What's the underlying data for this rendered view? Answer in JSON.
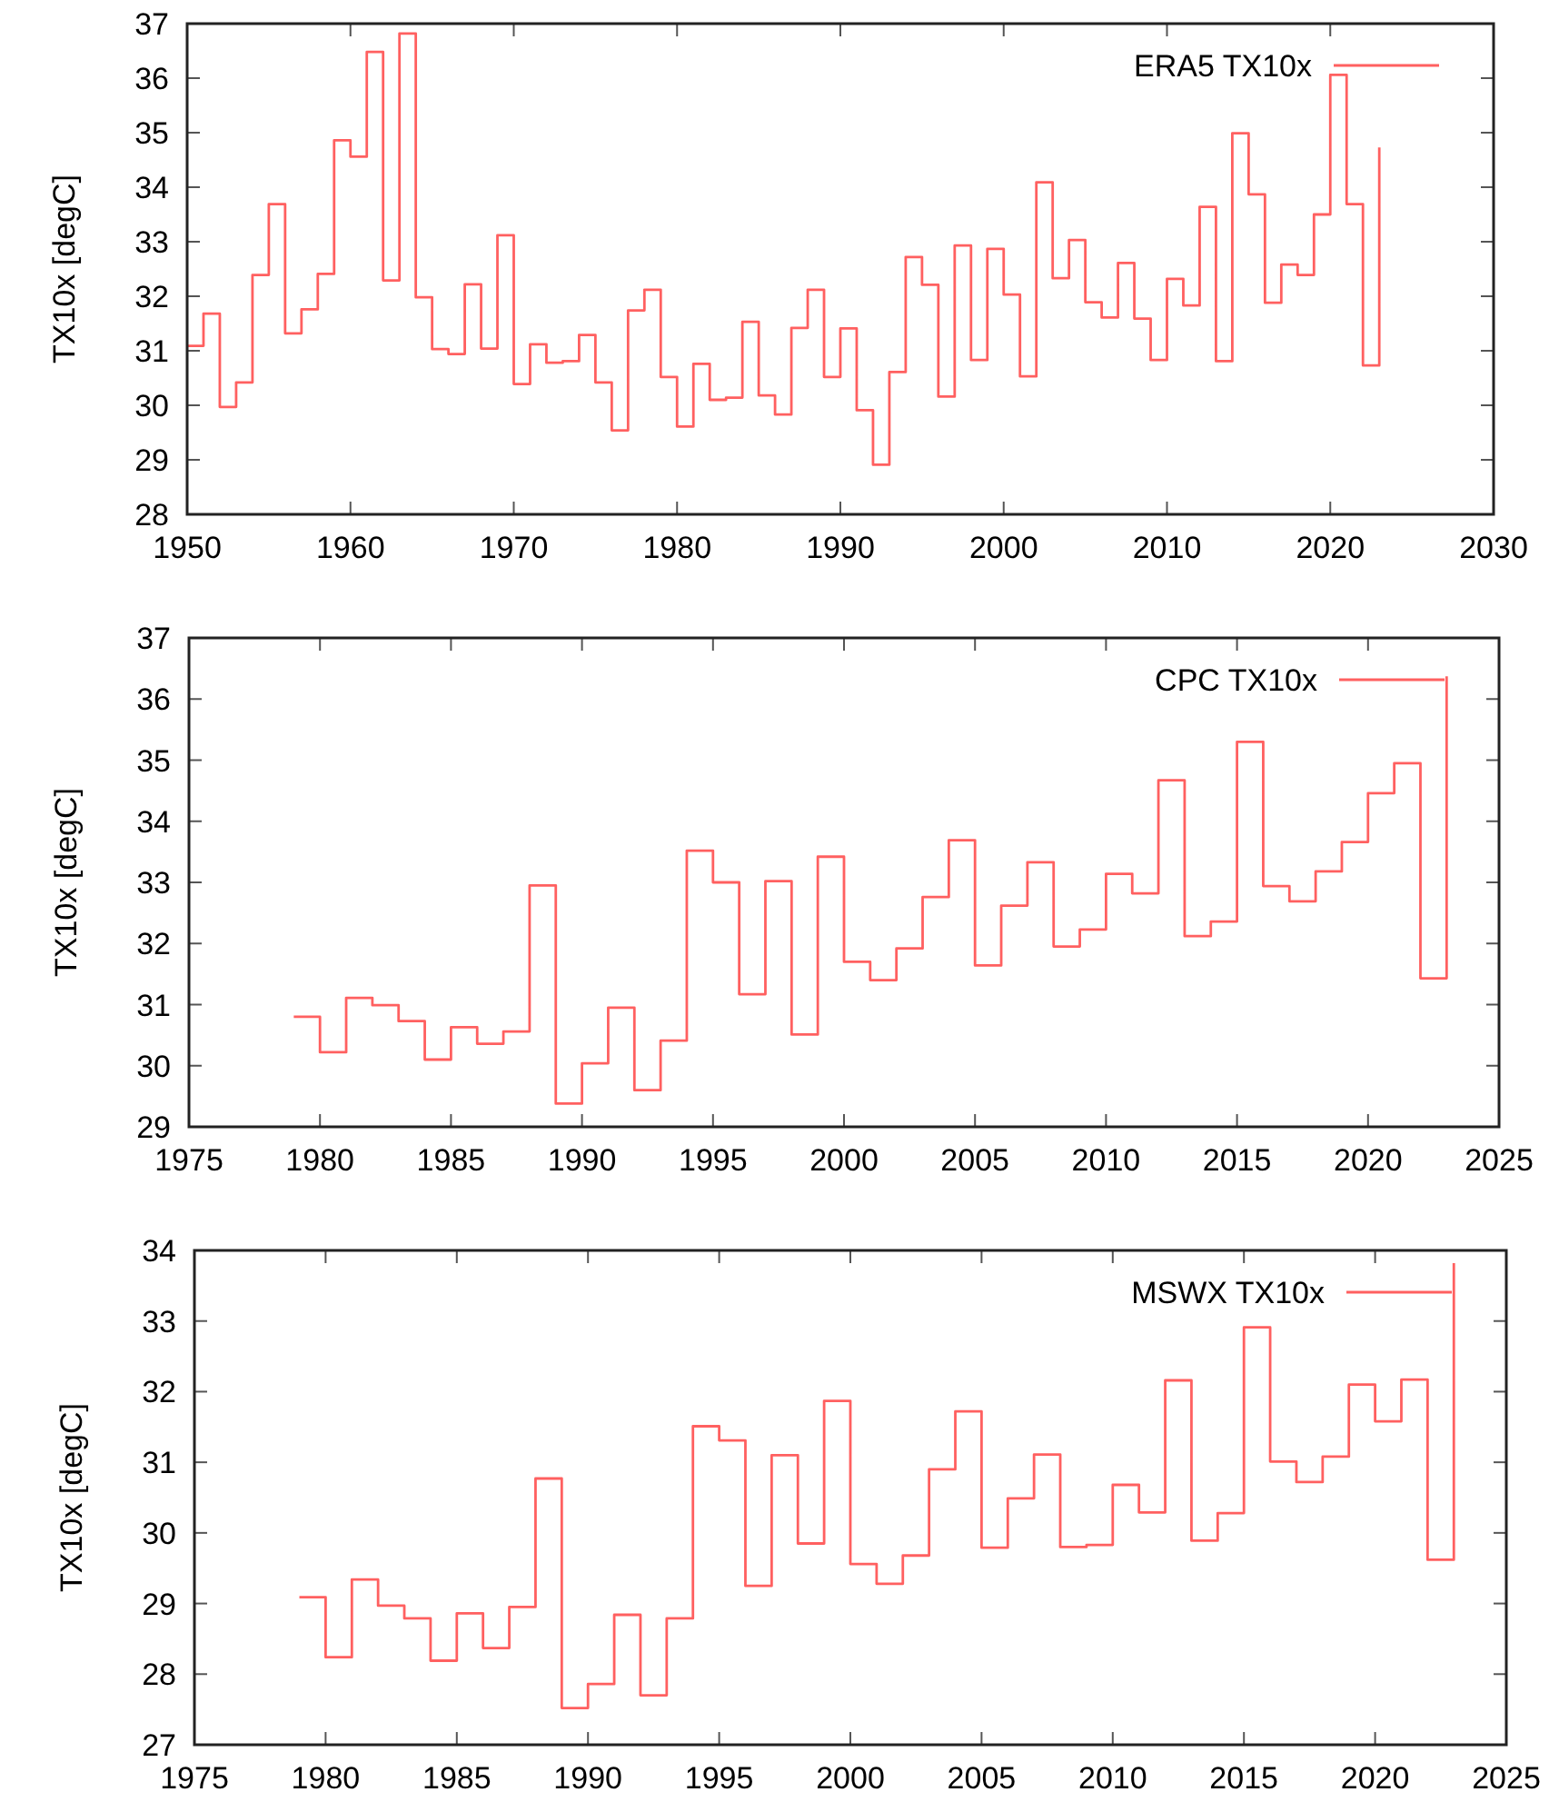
{
  "chart_data": [
    {
      "type": "step",
      "ylabel": "TX10x [degC]",
      "legend": "top right",
      "xlim": [
        1950,
        2030
      ],
      "xticks": [
        1950,
        1960,
        1970,
        1980,
        1990,
        2000,
        2010,
        2020,
        2030
      ],
      "ylim": [
        28,
        37
      ],
      "yticks": [
        28,
        29,
        30,
        31,
        32,
        33,
        34,
        35,
        36,
        37
      ],
      "x": [
        1950,
        1951,
        1952,
        1953,
        1954,
        1955,
        1956,
        1957,
        1958,
        1959,
        1960,
        1961,
        1962,
        1963,
        1964,
        1965,
        1966,
        1967,
        1968,
        1969,
        1970,
        1971,
        1972,
        1973,
        1974,
        1975,
        1976,
        1977,
        1978,
        1979,
        1980,
        1981,
        1982,
        1983,
        1984,
        1985,
        1986,
        1987,
        1988,
        1989,
        1990,
        1991,
        1992,
        1993,
        1994,
        1995,
        1996,
        1997,
        1998,
        1999,
        2000,
        2001,
        2002,
        2003,
        2004,
        2005,
        2006,
        2007,
        2008,
        2009,
        2010,
        2011,
        2012,
        2013,
        2014,
        2015,
        2016,
        2017,
        2018,
        2019,
        2020,
        2021,
        2022,
        2023
      ],
      "series": [
        {
          "name": "ERA5 TX10x",
          "color": "#ff6060",
          "values": [
            31.09,
            31.68,
            29.97,
            30.42,
            32.39,
            33.69,
            31.32,
            31.76,
            32.41,
            34.86,
            34.56,
            36.48,
            32.29,
            36.82,
            31.98,
            31.03,
            30.94,
            32.22,
            31.04,
            33.12,
            30.39,
            31.12,
            30.78,
            30.81,
            31.29,
            30.42,
            29.54,
            31.74,
            32.12,
            30.52,
            29.61,
            30.76,
            30.1,
            30.14,
            31.53,
            30.18,
            29.83,
            31.42,
            32.12,
            30.52,
            31.41,
            29.91,
            28.91,
            30.61,
            32.72,
            32.21,
            30.16,
            32.93,
            30.83,
            32.87,
            32.03,
            30.53,
            34.09,
            32.33,
            33.03,
            31.89,
            31.61,
            32.61,
            31.59,
            30.83,
            32.32,
            31.83,
            33.64,
            30.81,
            34.99,
            33.87,
            31.88,
            32.58,
            32.39,
            33.5,
            36.06,
            33.69,
            30.73,
            34.73
          ]
        }
      ]
    },
    {
      "type": "step",
      "ylabel": "TX10x [degC]",
      "legend": "top right",
      "xlim": [
        1975,
        2025
      ],
      "xticks": [
        1975,
        1980,
        1985,
        1990,
        1995,
        2000,
        2005,
        2010,
        2015,
        2020,
        2025
      ],
      "ylim": [
        29,
        37
      ],
      "yticks": [
        29,
        30,
        31,
        32,
        33,
        34,
        35,
        36,
        37
      ],
      "x": [
        1979,
        1980,
        1981,
        1982,
        1983,
        1984,
        1985,
        1986,
        1987,
        1988,
        1989,
        1990,
        1991,
        1992,
        1993,
        1994,
        1995,
        1996,
        1997,
        1998,
        1999,
        2000,
        2001,
        2002,
        2003,
        2004,
        2005,
        2006,
        2007,
        2008,
        2009,
        2010,
        2011,
        2012,
        2013,
        2014,
        2015,
        2016,
        2017,
        2018,
        2019,
        2020,
        2021,
        2022,
        2023
      ],
      "series": [
        {
          "name": "CPC TX10x",
          "color": "#ff6060",
          "values": [
            30.8,
            30.22,
            31.11,
            30.99,
            30.73,
            30.1,
            30.63,
            30.36,
            30.56,
            32.95,
            29.38,
            30.04,
            30.95,
            29.6,
            30.41,
            33.52,
            33.0,
            31.17,
            33.02,
            30.51,
            33.42,
            31.7,
            31.4,
            31.92,
            32.76,
            33.69,
            31.64,
            32.62,
            33.33,
            31.95,
            32.23,
            33.14,
            32.82,
            34.67,
            32.12,
            32.36,
            35.3,
            32.94,
            32.69,
            33.18,
            33.66,
            34.46,
            34.95,
            31.43,
            36.37
          ]
        }
      ]
    },
    {
      "type": "step",
      "ylabel": "TX10x [degC]",
      "legend": "top right",
      "xlim": [
        1975,
        2025
      ],
      "xticks": [
        1975,
        1980,
        1985,
        1990,
        1995,
        2000,
        2005,
        2010,
        2015,
        2020,
        2025
      ],
      "ylim": [
        27,
        34
      ],
      "yticks": [
        27,
        28,
        29,
        30,
        31,
        32,
        33,
        34
      ],
      "x": [
        1979,
        1980,
        1981,
        1982,
        1983,
        1984,
        1985,
        1986,
        1987,
        1988,
        1989,
        1990,
        1991,
        1992,
        1993,
        1994,
        1995,
        1996,
        1997,
        1998,
        1999,
        2000,
        2001,
        2002,
        2003,
        2004,
        2005,
        2006,
        2007,
        2008,
        2009,
        2010,
        2011,
        2012,
        2013,
        2014,
        2015,
        2016,
        2017,
        2018,
        2019,
        2020,
        2021,
        2022,
        2023
      ],
      "series": [
        {
          "name": "MSWX TX10x",
          "color": "#ff6060",
          "values": [
            29.09,
            28.24,
            29.34,
            28.97,
            28.79,
            28.19,
            28.86,
            28.37,
            28.95,
            30.77,
            27.52,
            27.86,
            28.84,
            27.7,
            28.79,
            31.51,
            31.31,
            29.25,
            31.1,
            29.85,
            31.87,
            29.56,
            29.28,
            29.68,
            30.9,
            31.72,
            29.79,
            30.49,
            31.11,
            29.8,
            29.83,
            30.68,
            30.29,
            32.16,
            29.89,
            30.28,
            32.91,
            31.01,
            30.72,
            31.08,
            32.1,
            31.58,
            32.17,
            29.62,
            33.82
          ]
        }
      ]
    }
  ]
}
